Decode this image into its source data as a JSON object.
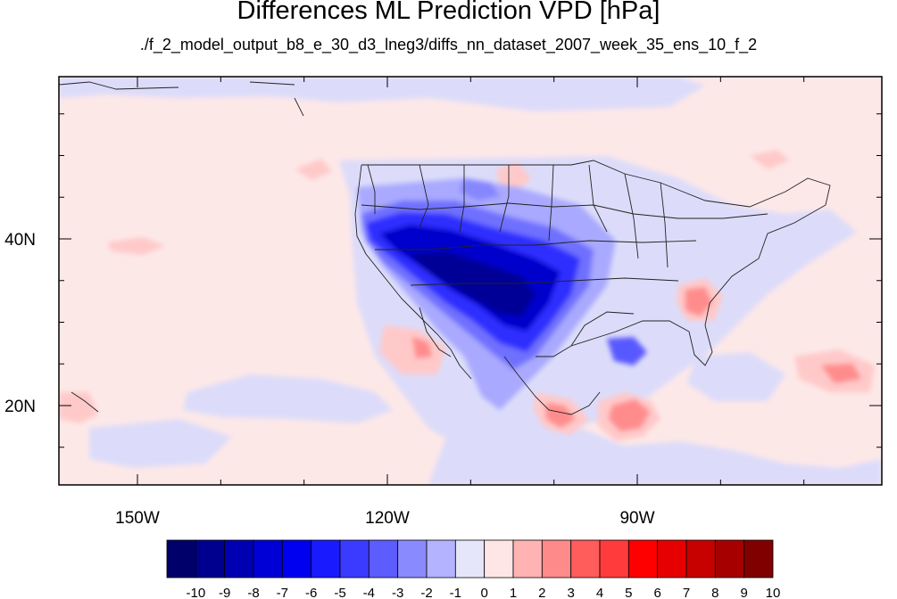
{
  "title": "Differences ML Prediction VPD [hPa]",
  "subtitle": "./f_2_model_output_b8_e_30_d3_lneg3/diffs_nn_dataset_2007_week_35_ens_10_f_2",
  "axes": {
    "lon_labels": [
      "150W",
      "120W",
      "90W"
    ],
    "lat_labels": [
      "40N",
      "20N"
    ]
  },
  "colorbar": {
    "labels": [
      "-10",
      "-9",
      "-8",
      "-7",
      "-6",
      "-5",
      "-4",
      "-3",
      "-2",
      "-1",
      "0",
      "1",
      "2",
      "3",
      "4",
      "5",
      "6",
      "7",
      "8",
      "9",
      "10"
    ],
    "colors": [
      "#00006b",
      "#00008f",
      "#0000b3",
      "#0000d6",
      "#0000f0",
      "#1a1aff",
      "#3b3bff",
      "#5c5cff",
      "#8a8aff",
      "#b3b3ff",
      "#e6e6fa",
      "#ffe6e6",
      "#ffb3b3",
      "#ff8a8a",
      "#ff5c5c",
      "#ff3b3b",
      "#ff0000",
      "#e60000",
      "#c70000",
      "#a60000",
      "#800000"
    ]
  }
}
